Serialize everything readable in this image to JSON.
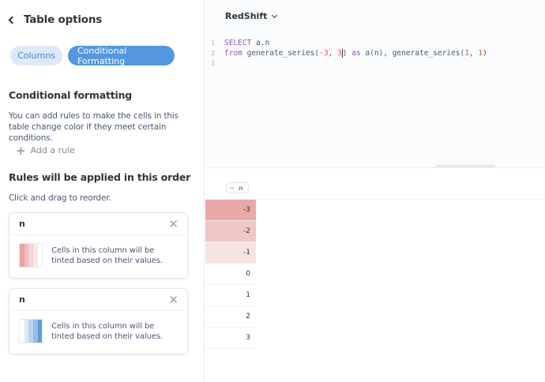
{
  "sidebar": {
    "back_title": "Table options",
    "tabs": [
      "Columns",
      "Conditional Formatting"
    ],
    "heading": "Conditional formatting",
    "description": "You can add rules to make the cells in this table change color if they meet certain conditions.",
    "add_rule": "Add a rule",
    "order_heading": "Rules will be applied in this order",
    "drag_hint": "Click and drag to reorder.",
    "rules": [
      {
        "column": "n",
        "text": "Cells in this column will be tinted based on their values.",
        "palette": [
          "#e8a3a3",
          "#eebcbc",
          "#f4d4d4",
          "#f9e8e8",
          "#ffffff"
        ]
      },
      {
        "column": "n",
        "text": "Cells in this column will be tinted based on their values.",
        "palette": [
          "#ffffff",
          "#dbe8f6",
          "#b9d3ee",
          "#97bde6",
          "#5f9bdc"
        ]
      }
    ]
  },
  "editor": {
    "database": "RedShift",
    "lines": [
      {
        "num": "1"
      },
      {
        "num": "2"
      },
      {
        "num": "3"
      }
    ]
  },
  "results": {
    "column": "n",
    "rows": [
      {
        "value": "-3",
        "tint": "#e9a9a9"
      },
      {
        "value": "-2",
        "tint": "#f0c6c6"
      },
      {
        "value": "-1",
        "tint": "#f7e2e2"
      },
      {
        "value": "0",
        "tint": "#ffffff"
      },
      {
        "value": "1",
        "tint": "#ffffff"
      },
      {
        "value": "2",
        "tint": "#ffffff"
      },
      {
        "value": "3",
        "tint": "#ffffff"
      }
    ]
  }
}
